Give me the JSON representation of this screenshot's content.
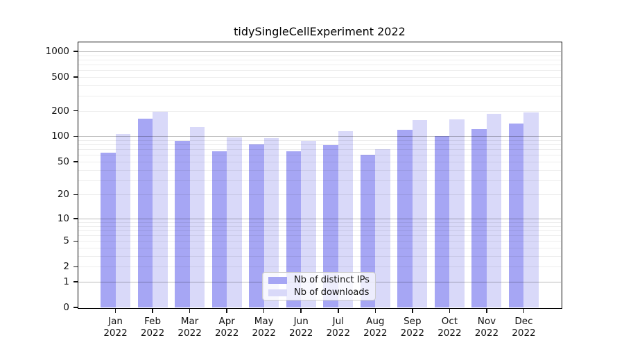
{
  "chart_data": {
    "type": "bar",
    "title": "tidySingleCellExperiment 2022",
    "categories": [
      "Jan",
      "Feb",
      "Mar",
      "Apr",
      "May",
      "Jun",
      "Jul",
      "Aug",
      "Sep",
      "Oct",
      "Nov",
      "Dec"
    ],
    "category_year": "2022",
    "series": [
      {
        "name": "Nb of distinct IPs",
        "color": "#a6a6f4",
        "values": [
          64,
          162,
          89,
          67,
          81,
          67,
          79,
          61,
          120,
          100,
          121,
          143
        ]
      },
      {
        "name": "Nb of downloads",
        "color": "#d9d9f9",
        "values": [
          106,
          196,
          130,
          97,
          95,
          88,
          116,
          70,
          156,
          158,
          183,
          190
        ]
      }
    ],
    "xlabel": "",
    "ylabel": "",
    "yscale": "log1p",
    "y_ticks": [
      0,
      1,
      2,
      5,
      10,
      20,
      50,
      100,
      200,
      500,
      1000
    ],
    "ylim": [
      0,
      1275
    ],
    "grid": true,
    "legend_position": "lower center"
  }
}
